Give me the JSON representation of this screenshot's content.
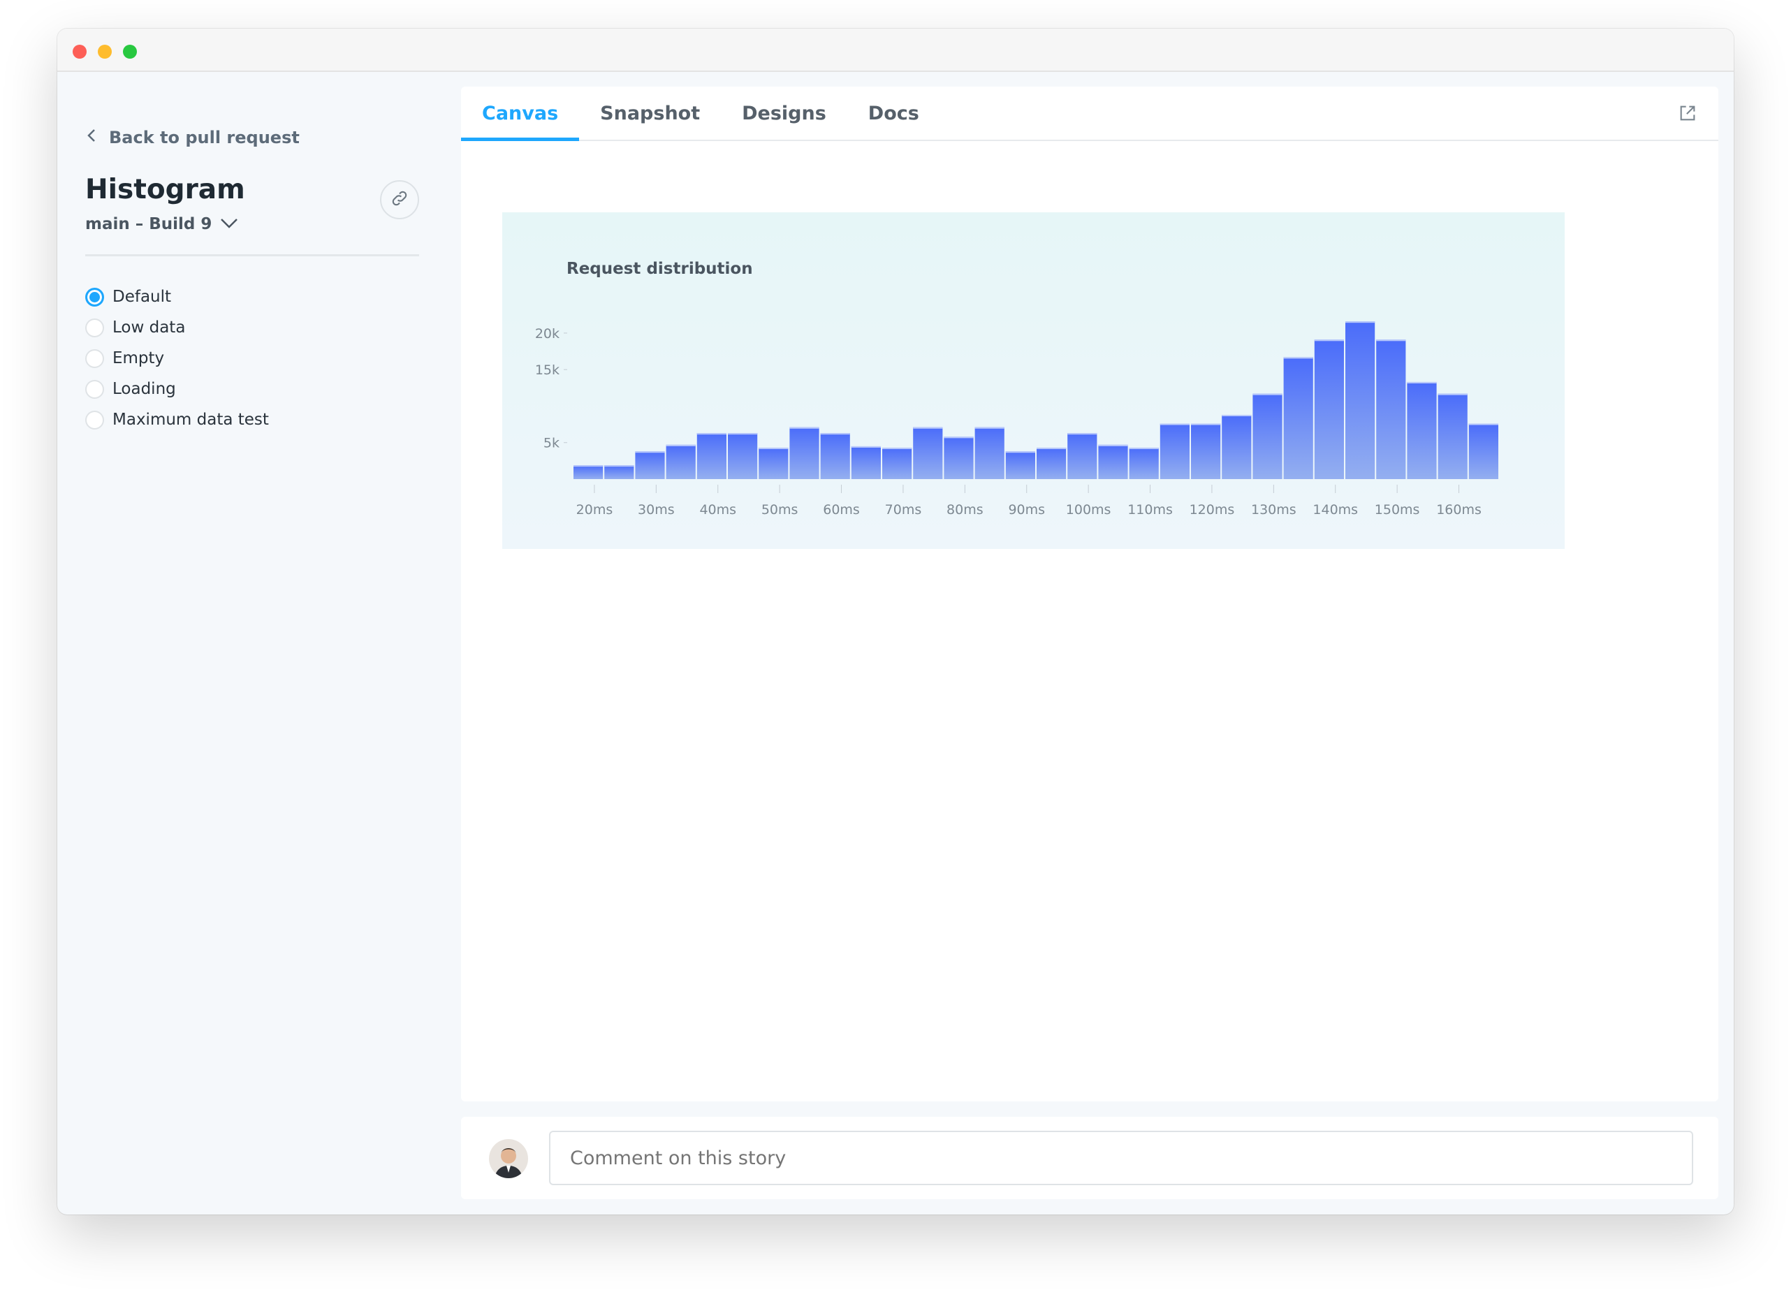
{
  "window": {
    "controls": {
      "close": "#fd5f57",
      "minimize": "#febc2e",
      "zoom": "#28c840"
    }
  },
  "sidebar": {
    "back_label": "Back to pull request",
    "title": "Histogram",
    "build": "main – Build 9",
    "stories": [
      {
        "label": "Default",
        "selected": true
      },
      {
        "label": "Low data",
        "selected": false
      },
      {
        "label": "Empty",
        "selected": false
      },
      {
        "label": "Loading",
        "selected": false
      },
      {
        "label": "Maximum data test",
        "selected": false
      }
    ]
  },
  "tabs": [
    {
      "label": "Canvas",
      "active": true
    },
    {
      "label": "Snapshot"
    },
    {
      "label": "Designs"
    },
    {
      "label": "Docs"
    }
  ],
  "comment": {
    "placeholder": "Comment on this story"
  },
  "accent": "#1ea7fd",
  "chart_data": {
    "type": "bar",
    "title": "Request distribution",
    "xlabel": "",
    "ylabel": "",
    "x_tick_labels": [
      "20ms",
      "30ms",
      "40ms",
      "50ms",
      "60ms",
      "70ms",
      "80ms",
      "90ms",
      "100ms",
      "110ms",
      "120ms",
      "130ms",
      "140ms",
      "150ms",
      "160ms"
    ],
    "y_tick_labels": [
      "5k",
      "15k",
      "20k"
    ],
    "y_ticks": [
      5000,
      15000,
      20000
    ],
    "ylim": [
      0,
      22000
    ],
    "values": [
      1900,
      1900,
      3800,
      4700,
      6300,
      6300,
      4300,
      7100,
      6300,
      4500,
      4300,
      7100,
      5800,
      7100,
      3800,
      4300,
      6300,
      4700,
      4300,
      7600,
      7600,
      8800,
      11700,
      16700,
      19100,
      21600,
      19100,
      13300,
      11700,
      7600
    ],
    "bar_color_top": "#4a6cfa",
    "bar_color_bottom": "#94aff0",
    "grid": false
  }
}
